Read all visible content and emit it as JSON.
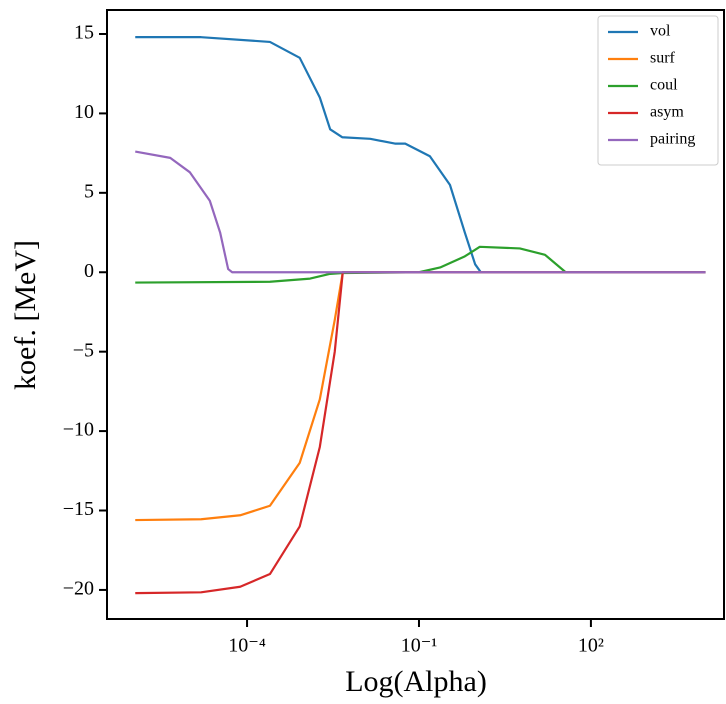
{
  "chart_data": {
    "type": "line",
    "xlabel": "Log(Alpha)",
    "ylabel": "koef. [MeV]",
    "xscale": "log",
    "xlim": [
      3.6e-07,
      21000
    ],
    "xticks": [
      {
        "value": 0.0001,
        "label": "10⁻⁴"
      },
      {
        "value": 0.1,
        "label": "10⁻¹"
      },
      {
        "value": 100,
        "label": "10²"
      }
    ],
    "ylim": [
      -21.83,
      16.51
    ],
    "yticks": [
      {
        "value": -20,
        "label": "−20"
      },
      {
        "value": -15,
        "label": "−15"
      },
      {
        "value": -10,
        "label": "−10"
      },
      {
        "value": -5,
        "label": "−5"
      },
      0,
      5,
      10,
      15
    ],
    "legend": "upper right",
    "series": [
      {
        "name": "vol",
        "color": "#1f77b4",
        "x": [
          1.12e-06,
          1.58e-05,
          0.000251,
          0.00083,
          0.00186,
          0.00282,
          0.00457,
          0.0141,
          0.038,
          0.0575,
          0.155,
          0.347,
          0.631,
          0.955,
          1.2,
          10000
        ],
        "values": [
          14.8,
          14.8,
          14.5,
          13.5,
          11,
          9,
          8.5,
          8.4,
          8.1,
          8.1,
          7.3,
          5.5,
          2.5,
          0.5,
          0,
          0
        ]
      },
      {
        "name": "surf",
        "color": "#ff7f0e",
        "x": [
          1.12e-06,
          1.58e-05,
          7.59e-05,
          0.000251,
          0.00083,
          0.00186,
          0.00339,
          0.00468,
          10000
        ],
        "values": [
          -15.6,
          -15.55,
          -15.3,
          -14.7,
          -12,
          -8,
          -3,
          0,
          0
        ]
      },
      {
        "name": "coul",
        "color": "#2ca02c",
        "x": [
          1.12e-06,
          0.000251,
          0.00126,
          0.00282,
          0.00468,
          0.1,
          0.234,
          0.631,
          1.15,
          5.75,
          15.8,
          36.3,
          10000
        ],
        "values": [
          -0.65,
          -0.6,
          -0.4,
          -0.1,
          -0.05,
          0,
          0.3,
          1.0,
          1.6,
          1.5,
          1.1,
          0,
          0
        ]
      },
      {
        "name": "asym",
        "color": "#d62728",
        "x": [
          1.12e-06,
          1.58e-05,
          7.59e-05,
          0.000251,
          0.00083,
          0.00186,
          0.00339,
          0.00468,
          10000
        ],
        "values": [
          -20.2,
          -20.15,
          -19.8,
          -19,
          -16,
          -11,
          -5,
          0,
          0
        ]
      },
      {
        "name": "pairing",
        "color": "#9467bd",
        "x": [
          1.12e-06,
          4.57e-06,
          1e-05,
          2.24e-05,
          3.39e-05,
          4.68e-05,
          5.5e-05,
          10000
        ],
        "values": [
          7.6,
          7.2,
          6.3,
          4.5,
          2.5,
          0.2,
          0,
          0
        ]
      }
    ]
  }
}
